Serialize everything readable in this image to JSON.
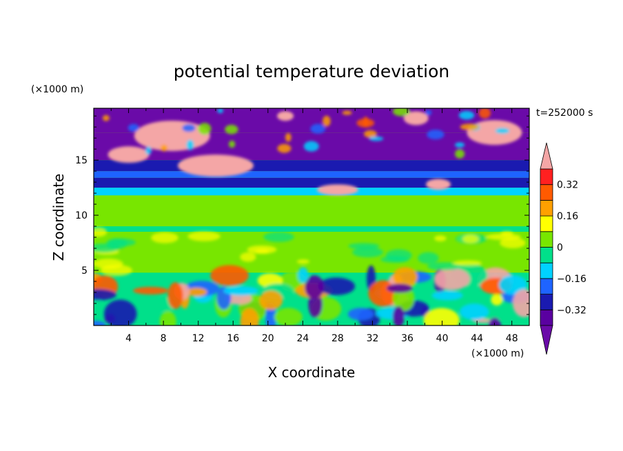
{
  "chart_data": {
    "type": "heatmap",
    "title": "potential temperature deviation",
    "xlabel": "X coordinate",
    "ylabel": "Z coordinate",
    "x_unit": "(×1000 m)",
    "y_unit": "(×1000 m)",
    "time_label": "t=252000 s",
    "xlim": [
      0,
      50
    ],
    "ylim": [
      0,
      19.7
    ],
    "x_ticks": [
      "4",
      "8",
      "12",
      "16",
      "20",
      "24",
      "28",
      "32",
      "36",
      "40",
      "44",
      "48"
    ],
    "y_ticks": [
      "5",
      "10",
      "15"
    ],
    "colorbar": {
      "levels": [
        -0.4,
        -0.32,
        -0.24,
        -0.16,
        -0.08,
        0,
        0.08,
        0.16,
        0.24,
        0.32,
        0.4
      ],
      "labels": [
        "0.32",
        "0.16",
        "0",
        "−0.16",
        "−0.32"
      ],
      "label_values": [
        0.32,
        0.16,
        0,
        -0.16,
        -0.32
      ],
      "colors": [
        "#5a00a0",
        "#1a1ab0",
        "#1e64ff",
        "#00d2ff",
        "#00e08a",
        "#78e600",
        "#ffff00",
        "#ffa000",
        "#ff5a00",
        "#ff2020"
      ],
      "over_color": "#f4a6a6",
      "under_color": "#6a0aa8"
    }
  }
}
